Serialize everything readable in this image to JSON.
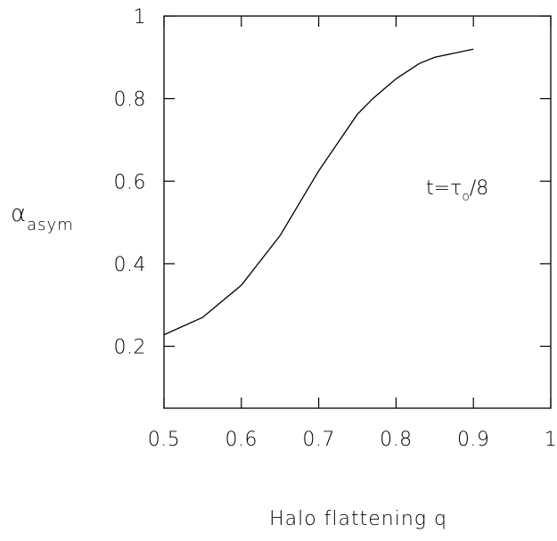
{
  "chart_data": {
    "type": "line",
    "xlabel": "Halo flattening q",
    "ylabel": "α",
    "ylabel_subscript": "asym",
    "annotation": {
      "prefix": "t=τ",
      "subscript": "o",
      "suffix": "/8"
    },
    "xlim": [
      0.5,
      1.0
    ],
    "ylim": [
      0.05,
      1.0
    ],
    "xticks": [
      0.5,
      0.6,
      0.7,
      0.8,
      0.9,
      1.0
    ],
    "xtick_labels": [
      "0.5",
      "0.6",
      "0.7",
      "0.8",
      "0.9",
      "1"
    ],
    "yticks": [
      0.2,
      0.4,
      0.6,
      0.8,
      1.0
    ],
    "ytick_labels": [
      "0.2",
      "0.4",
      "0.6",
      "0.8",
      "1"
    ],
    "grid": false,
    "series": [
      {
        "x": [
          0.5,
          0.55,
          0.6,
          0.65,
          0.7,
          0.75,
          0.77,
          0.8,
          0.83,
          0.85,
          0.9
        ],
        "y": [
          0.228,
          0.27,
          0.348,
          0.468,
          0.625,
          0.762,
          0.8,
          0.848,
          0.885,
          0.9,
          0.92
        ]
      }
    ]
  }
}
